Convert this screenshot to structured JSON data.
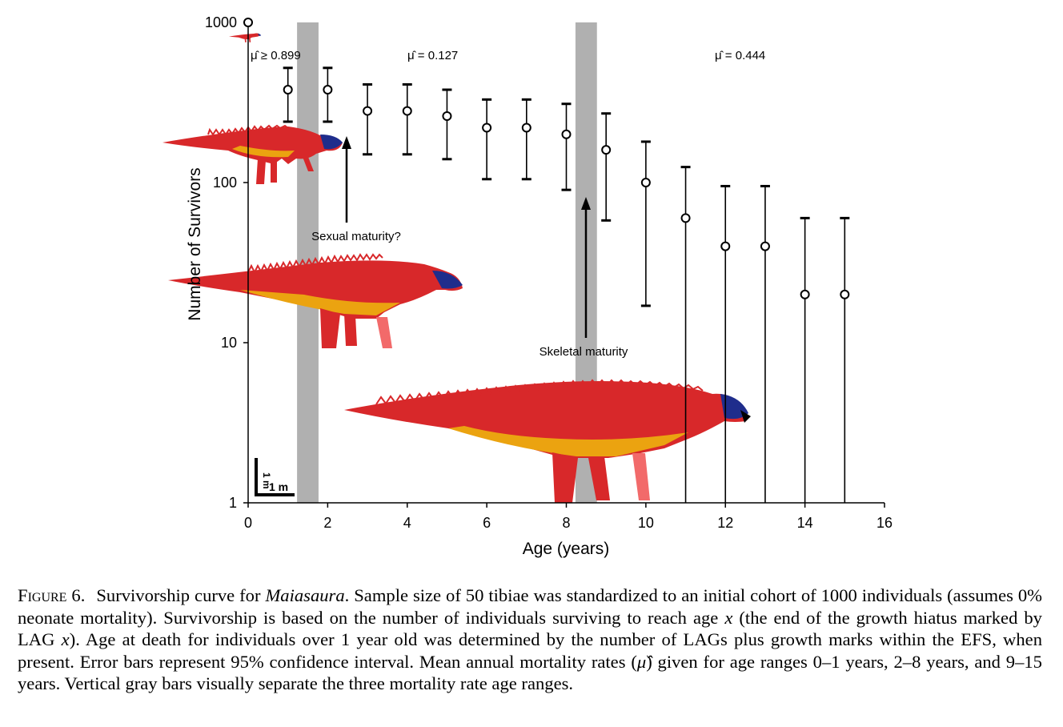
{
  "chart_data": {
    "type": "scatter",
    "xlabel": "Age (years)",
    "ylabel": "Number of Survivors",
    "xlim": [
      0,
      16
    ],
    "ylim": [
      1,
      1000
    ],
    "y_scale": "log",
    "grid": false,
    "xticks": [
      "0",
      "2",
      "4",
      "6",
      "8",
      "10",
      "12",
      "14",
      "16"
    ],
    "yticks": [
      "1",
      "10",
      "100",
      "1000"
    ],
    "series": [
      {
        "x": [
          0,
          1,
          2,
          3,
          4,
          5,
          6,
          7,
          8,
          9,
          10,
          11,
          12,
          13,
          14,
          15
        ],
        "y": [
          1000,
          380,
          380,
          280,
          280,
          260,
          220,
          220,
          200,
          160,
          100,
          60,
          40,
          40,
          20,
          20
        ],
        "err_low": [
          null,
          240,
          240,
          150,
          150,
          140,
          105,
          105,
          90,
          58,
          17,
          1,
          1,
          1,
          1,
          1
        ],
        "err_high": [
          null,
          520,
          520,
          410,
          410,
          380,
          330,
          330,
          310,
          270,
          180,
          125,
          95,
          95,
          60,
          60
        ]
      }
    ],
    "shaded_bands": [
      {
        "x": [
          1.23,
          1.77
        ]
      },
      {
        "x": [
          8.23,
          8.77
        ]
      }
    ],
    "annotations": {
      "mu1": "μ̂ ≥ 0.899",
      "mu2": "μ̂ = 0.127",
      "mu3": "μ̂ = 0.444",
      "sexual_maturity": "Sexual maturity?",
      "skeletal_maturity": "Skeletal maturity",
      "scale_bar": "1 m",
      "scale_bar_vertical": "1 m"
    }
  },
  "colors": {
    "band": "#b0b0b0",
    "body_red": "#d8282a",
    "belly_orange": "#eba310",
    "head_blue": "#1f2d8c",
    "leg_pink": "#f26a6a"
  },
  "caption": {
    "label": "Figure 6.",
    "text_1": "Survivorship curve for ",
    "genus": "Maiasaura",
    "text_2": ". Sample size of 50 tibiae was standardized to an initial cohort of 1000 individuals (assumes 0% neonate mortality). Survivorship is based on the number of individuals surviving to reach age ",
    "var_x": "x",
    "text_3": " (the end of the growth hiatus marked by LAG ",
    "var_x2": "x",
    "text_4": "). Age at death for individuals over 1 year old was determined by the number of LAGs plus growth marks within the EFS, when present. Error bars represent 95% confidence interval. Mean annual mortality rates (",
    "mu_symbol": "μ̂",
    "text_5": ") given for age ranges 0–1 years, 2–8 years, and 9–15 years. Vertical gray bars visually separate the three mortality rate age ranges."
  }
}
